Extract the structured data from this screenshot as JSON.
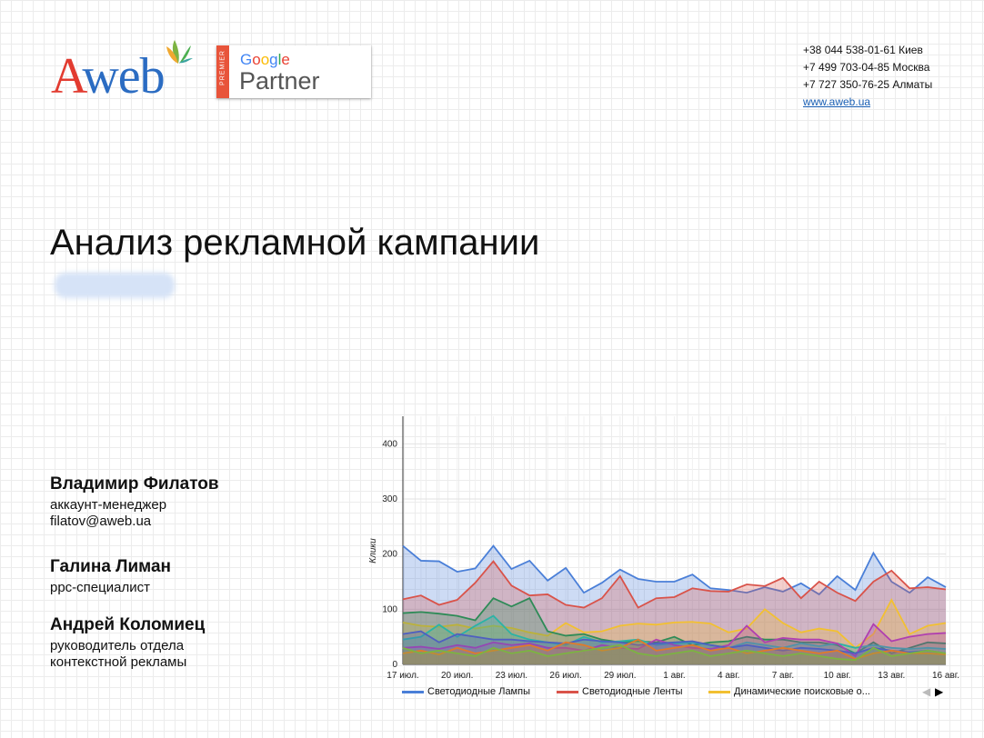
{
  "brand": {
    "logo_text_a": "A",
    "logo_text_rest": "web",
    "partner_premier": "PREMIER",
    "partner_google": "Google",
    "partner_label": "Partner"
  },
  "contacts": {
    "lines": [
      "+38 044 538-01-61 Киев",
      "+7 499 703-04-85 Москва",
      "+7 727 350-76-25 Алматы"
    ],
    "website": "www.aweb.ua"
  },
  "title": "Анализ рекламной кампании",
  "people": [
    {
      "name": "Владимир Филатов",
      "lines": [
        "аккаунт-менеджер",
        "filatov@aweb.ua"
      ]
    },
    {
      "name": "Галина Лиман",
      "lines": [
        "ppc-специалист"
      ]
    },
    {
      "name": "Андрей Коломиец",
      "lines": [
        "руководитель отдела",
        "контекстной рекламы"
      ]
    }
  ],
  "chart_data": {
    "type": "area",
    "ylabel": "Клики",
    "ylim": [
      0,
      450
    ],
    "yticks": [
      0,
      100,
      200,
      300,
      400
    ],
    "x": [
      "17 июл.",
      "18 июл.",
      "19 июл.",
      "20 июл.",
      "21 июл.",
      "22 июл.",
      "23 июл.",
      "24 июл.",
      "25 июл.",
      "26 июл.",
      "27 июл.",
      "28 июл.",
      "29 июл.",
      "30 июл.",
      "31 июл.",
      "1 авг.",
      "2 авг.",
      "3 авг.",
      "4 авг.",
      "5 авг.",
      "6 авг.",
      "7 авг.",
      "8 авг.",
      "9 авг.",
      "10 авг.",
      "11 авг.",
      "12 авг.",
      "13 авг.",
      "14 авг.",
      "15 авг.",
      "16 авг."
    ],
    "xtick_labels": [
      "17 июл.",
      "20 июл.",
      "23 июл.",
      "26 июл.",
      "29 июл.",
      "1 авг.",
      "4 авг.",
      "7 авг.",
      "10 авг.",
      "13 авг.",
      "16 авг."
    ],
    "grid": true,
    "legend_position": "bottom",
    "legend_nav": {
      "prev": "◀",
      "next": "▶"
    },
    "series": [
      {
        "name": "Светодиодные Лампы",
        "color": "#4a7fd8",
        "values": [
          215,
          188,
          187,
          168,
          174,
          215,
          173,
          188,
          152,
          175,
          130,
          148,
          172,
          155,
          150,
          150,
          163,
          138,
          135,
          130,
          140,
          132,
          147,
          127,
          160,
          135,
          202,
          150,
          130,
          158,
          140
        ]
      },
      {
        "name": "Светодиодные Ленты",
        "color": "#d9534a",
        "values": [
          118,
          125,
          108,
          117,
          148,
          187,
          143,
          125,
          127,
          108,
          103,
          120,
          160,
          103,
          120,
          122,
          138,
          133,
          132,
          145,
          142,
          157,
          120,
          150,
          130,
          115,
          150,
          170,
          138,
          140,
          136
        ]
      },
      {
        "name": "Динамические поисковые о...",
        "color": "#f2c031",
        "values": [
          76,
          70,
          68,
          72,
          65,
          70,
          66,
          58,
          52,
          75,
          58,
          60,
          70,
          74,
          72,
          76,
          77,
          74,
          58,
          65,
          100,
          75,
          58,
          65,
          60,
          30,
          55,
          117,
          55,
          70,
          75
        ]
      },
      {
        "name": "",
        "color": "#2e8b57",
        "values": [
          93,
          95,
          92,
          88,
          80,
          120,
          105,
          120,
          60,
          52,
          55,
          45,
          40,
          42,
          40,
          50,
          35,
          40,
          42,
          50,
          45,
          45,
          40,
          40,
          35,
          20,
          40,
          20,
          30,
          40,
          38
        ]
      },
      {
        "name": "",
        "color": "#2bb3a6",
        "values": [
          45,
          50,
          72,
          50,
          70,
          88,
          55,
          45,
          40,
          35,
          50,
          40,
          42,
          45,
          35,
          38,
          40,
          35,
          30,
          40,
          35,
          30,
          38,
          33,
          38,
          30,
          35,
          30,
          28,
          30,
          28
        ]
      },
      {
        "name": "",
        "color": "#b03fb0",
        "values": [
          30,
          32,
          28,
          35,
          30,
          40,
          35,
          38,
          30,
          30,
          25,
          35,
          30,
          28,
          45,
          35,
          30,
          28,
          35,
          70,
          40,
          48,
          45,
          45,
          38,
          15,
          73,
          42,
          50,
          55,
          57
        ]
      },
      {
        "name": "",
        "color": "#4f5fc0",
        "values": [
          55,
          60,
          40,
          55,
          50,
          45,
          45,
          42,
          40,
          38,
          45,
          42,
          40,
          35,
          38,
          40,
          42,
          35,
          30,
          35,
          30,
          25,
          30,
          28,
          25,
          20,
          30,
          25,
          22,
          25,
          20
        ]
      },
      {
        "name": "",
        "color": "#e07a2a",
        "values": [
          20,
          25,
          18,
          30,
          20,
          25,
          30,
          35,
          25,
          40,
          35,
          25,
          30,
          45,
          25,
          30,
          35,
          25,
          30,
          20,
          25,
          30,
          25,
          20,
          25,
          10,
          20,
          25,
          20,
          20,
          18
        ]
      },
      {
        "name": "",
        "color": "#7cb342",
        "values": [
          30,
          20,
          25,
          20,
          15,
          30,
          20,
          25,
          15,
          20,
          25,
          30,
          35,
          20,
          15,
          20,
          25,
          15,
          20,
          25,
          20,
          15,
          20,
          15,
          10,
          8,
          30,
          15,
          20,
          25,
          20
        ]
      }
    ]
  }
}
